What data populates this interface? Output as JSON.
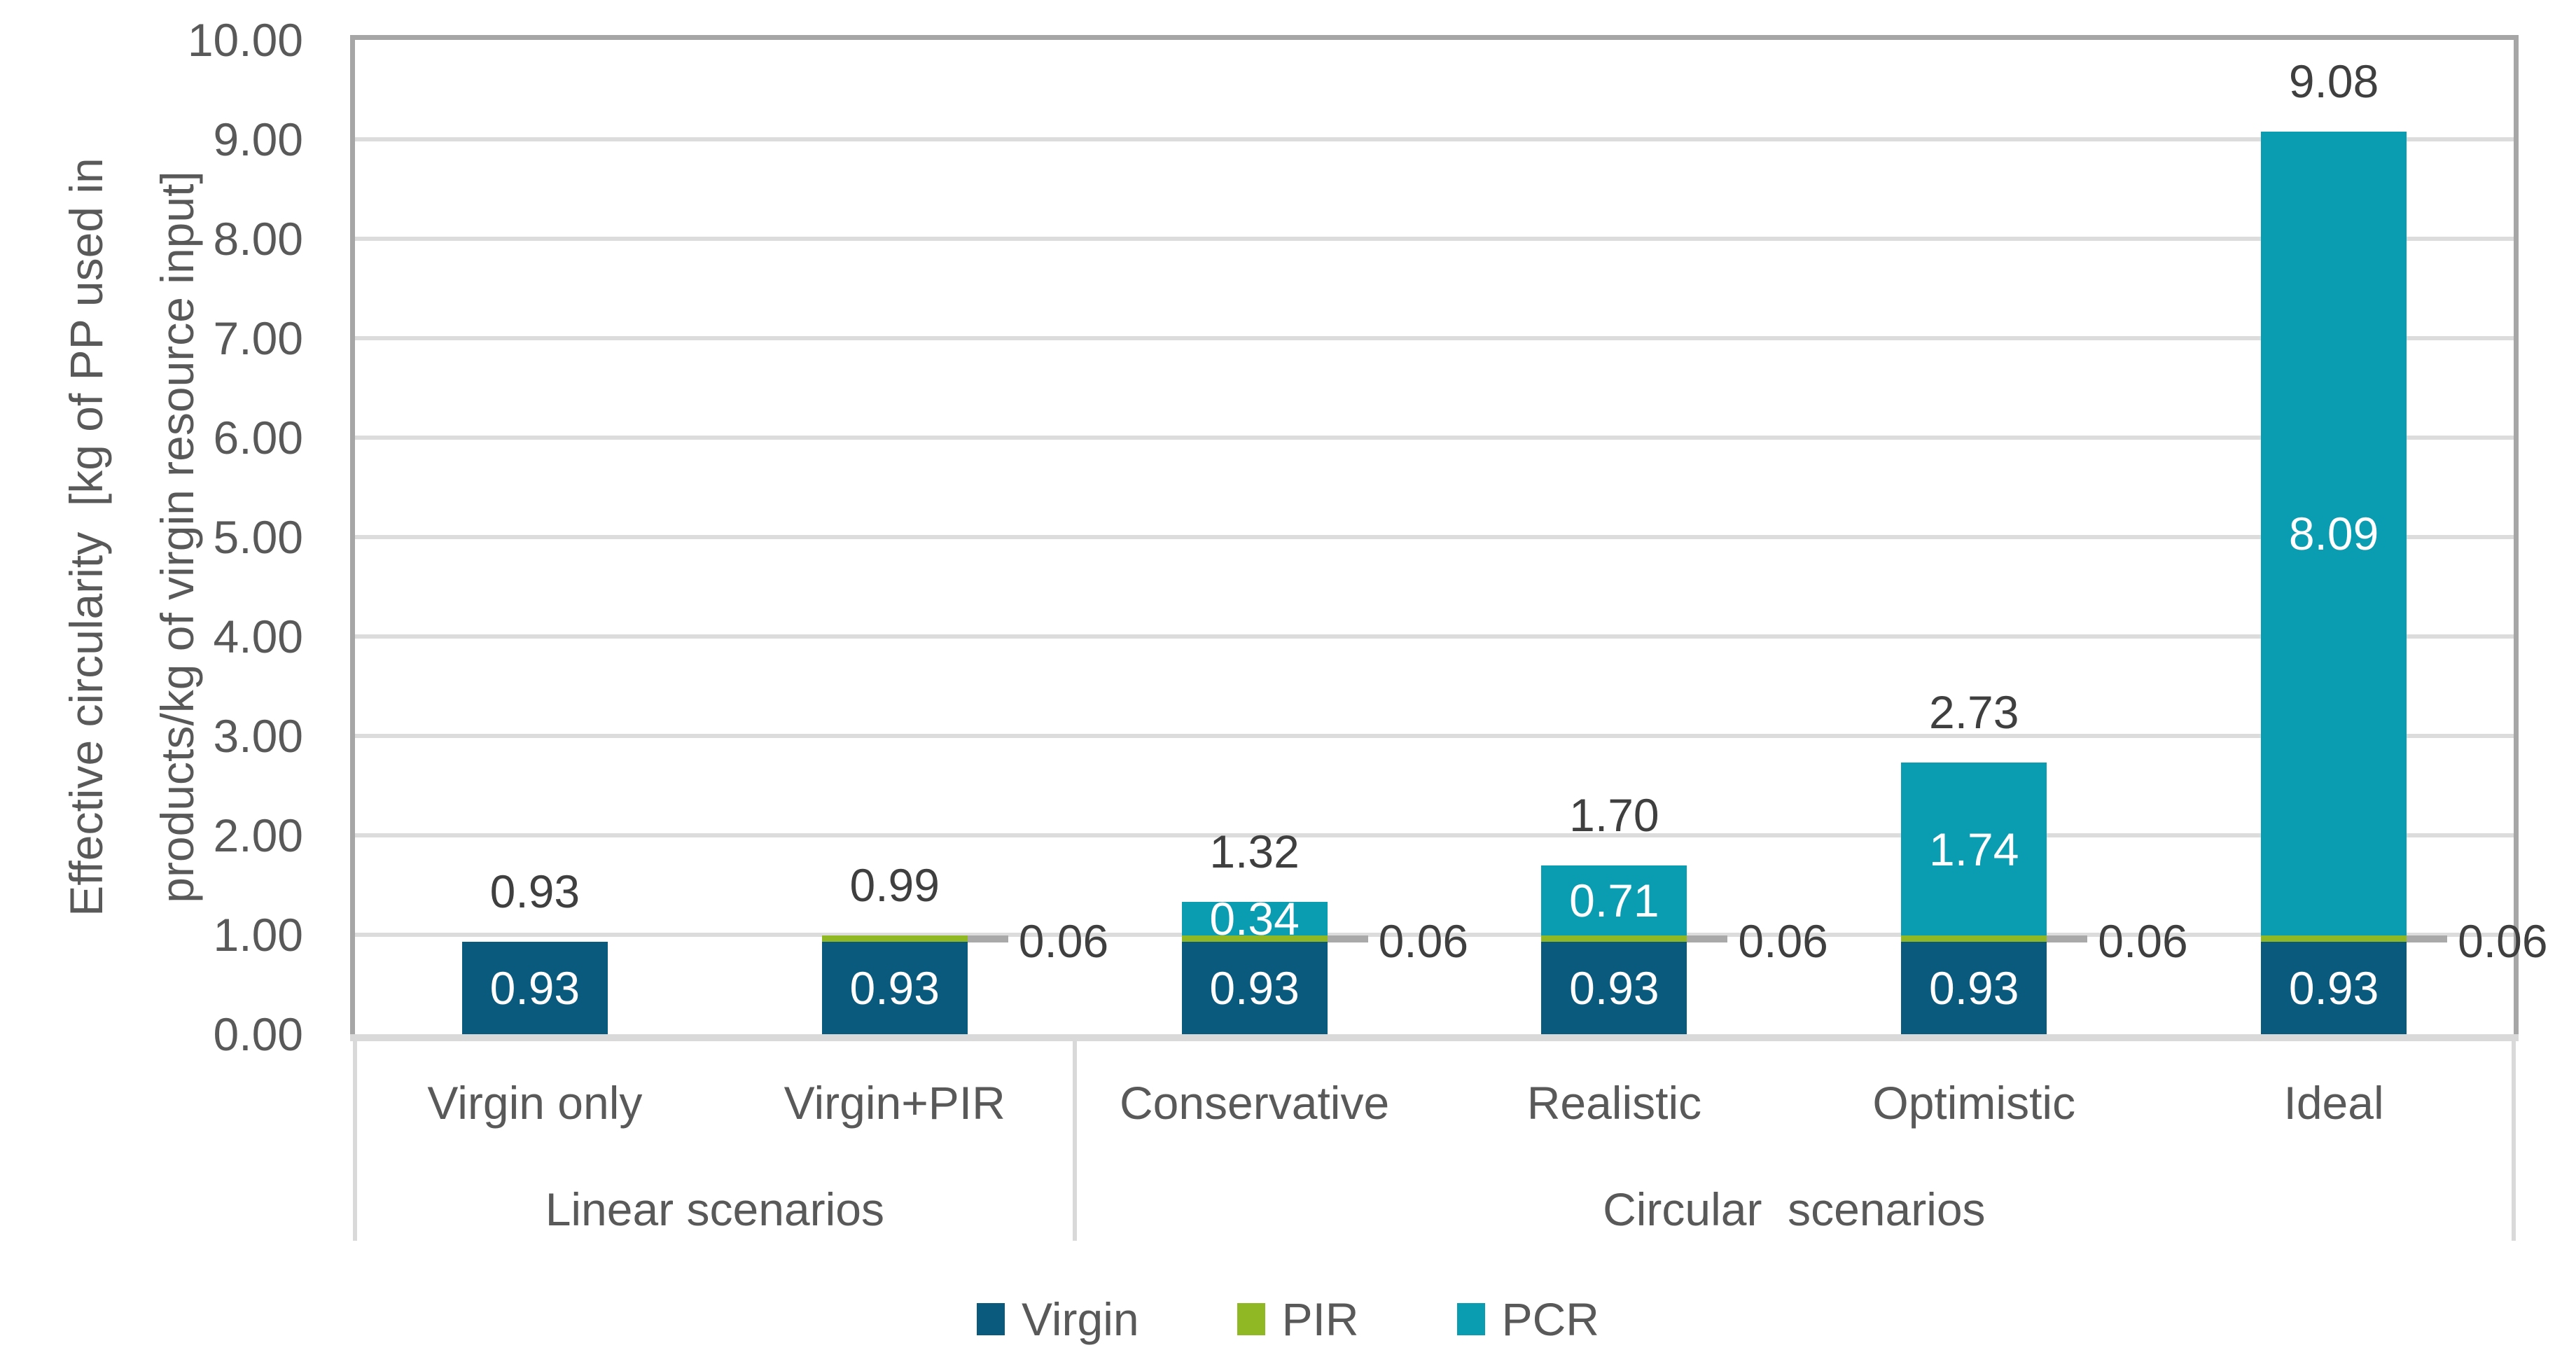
{
  "chart_data": {
    "type": "bar",
    "stacked": true,
    "title": "",
    "y_axis": {
      "title_line1": "Effective circularity  [kg of PP used in",
      "title_line2": "products/kg of virgin resource input]",
      "min": 0,
      "max": 10,
      "tick_step": 1,
      "ticks": [
        "10.00",
        "9.00",
        "8.00",
        "7.00",
        "6.00",
        "5.00",
        "4.00",
        "3.00",
        "2.00",
        "1.00",
        "0.00"
      ]
    },
    "categories": [
      "Virgin only",
      "Virgin+PIR",
      "Conservative",
      "Realistic",
      "Optimistic",
      "Ideal"
    ],
    "groups": [
      {
        "label": "Linear scenarios",
        "start": 0,
        "span": 2
      },
      {
        "label": "Circular  scenarios",
        "start": 2,
        "span": 4
      }
    ],
    "series": [
      {
        "name": "Virgin",
        "color": "#0a5a7d",
        "values": [
          0.93,
          0.93,
          0.93,
          0.93,
          0.93,
          0.93
        ]
      },
      {
        "name": "PIR",
        "color": "#90b724",
        "values": [
          0,
          0.06,
          0.06,
          0.06,
          0.06,
          0.06
        ]
      },
      {
        "name": "PCR",
        "color": "#0a9db2",
        "values": [
          0,
          0,
          0.34,
          0.71,
          1.74,
          8.09
        ]
      }
    ],
    "totals": [
      "0.93",
      "0.99",
      "1.32",
      "1.70",
      "2.73",
      "9.08"
    ],
    "inside_labels": {
      "Virgin": [
        "0.93",
        "0.93",
        "0.93",
        "0.93",
        "0.93",
        "0.93"
      ],
      "PCR": [
        null,
        null,
        "0.34",
        "0.71",
        "1.74",
        "8.09"
      ]
    },
    "callout_labels": {
      "PIR": [
        null,
        "0.06",
        "0.06",
        "0.06",
        "0.06",
        "0.06"
      ]
    },
    "legend": {
      "position": "bottom",
      "items": [
        {
          "label": "Virgin",
          "color": "#0a5a7d"
        },
        {
          "label": "PIR",
          "color": "#90b724"
        },
        {
          "label": "PCR",
          "color": "#0a9db2"
        }
      ]
    },
    "grid": "horizontal",
    "style_colors": {
      "gridline": "#dcdcdc",
      "plot_border": "#a6a6a6",
      "axis_line": "#d9d9d9",
      "leader_line": "#a9a9a9",
      "divider": "#d9d9d9",
      "tick_text": "#595959",
      "outside_label_text": "#3f3f3f",
      "inside_label_text": "#ffffff"
    }
  }
}
